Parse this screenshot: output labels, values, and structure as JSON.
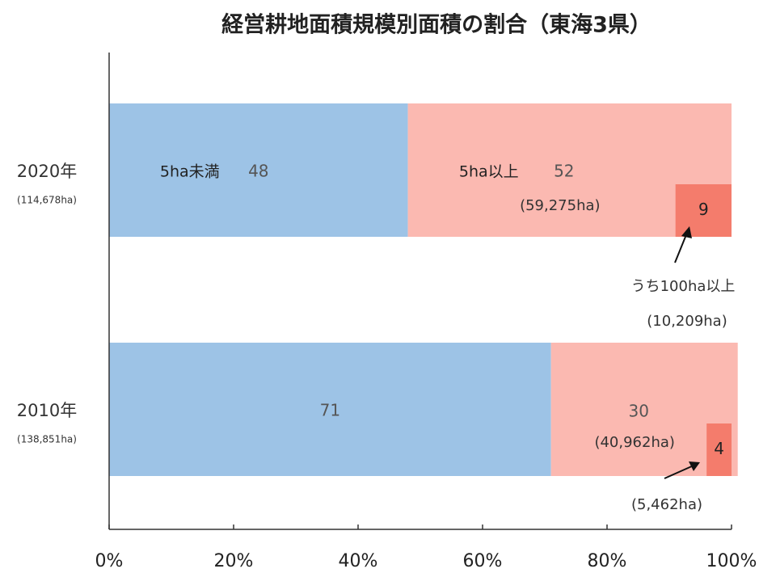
{
  "chart_data": {
    "type": "bar",
    "title": "経営耕地面積規模別面積の割合（東海3県）",
    "categories": [
      "2020年",
      "2010年"
    ],
    "category_sublabels": [
      "(114,678ha)",
      "(138,851ha)"
    ],
    "series": [
      {
        "name": "5ha未満",
        "color": "#9dc3e6",
        "values": [
          48,
          71
        ]
      },
      {
        "name": "5ha以上",
        "color": "#fbb9b1",
        "values": [
          52,
          30
        ],
        "area_labels": [
          "(59,275ha)",
          "(40,962ha)"
        ]
      },
      {
        "name": "うち100ha以上",
        "color": "#f47c6c",
        "values": [
          9,
          4
        ],
        "area_labels": [
          "(10,209ha)",
          "(5,462ha)"
        ],
        "overlay": true
      }
    ],
    "xlim": [
      0,
      100
    ],
    "xticks": [
      {
        "value": 0,
        "label": "0%"
      },
      {
        "value": 20,
        "label": "20%"
      },
      {
        "value": 40,
        "label": "40%"
      },
      {
        "value": 60,
        "label": "60%"
      },
      {
        "value": 80,
        "label": "80%"
      },
      {
        "value": 100,
        "label": "100%"
      }
    ]
  }
}
